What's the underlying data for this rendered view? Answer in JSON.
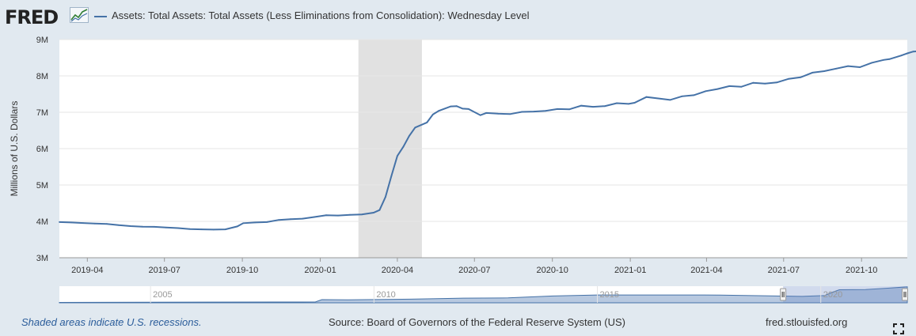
{
  "header": {
    "logo_text": "FRED",
    "series_label": "Assets: Total Assets: Total Assets (Less Eliminations from Consolidation): Wednesday Level"
  },
  "footer": {
    "recession_note": "Shaded areas indicate U.S. recessions.",
    "source": "Source: Board of Governors of the Federal Reserve System (US)",
    "site": "fred.stlouisfed.org"
  },
  "colors": {
    "line": "#4572a7",
    "recession": "#e1e1e1",
    "background": "#e1e9f0",
    "navigator_fill": "#7d9cc6"
  },
  "chart_data": {
    "type": "line",
    "ylabel": "Millions of U.S. Dollars",
    "x_ticks": [
      "2019-04",
      "2019-07",
      "2019-10",
      "2020-01",
      "2020-04",
      "2020-07",
      "2020-10",
      "2021-01",
      "2021-04",
      "2021-07",
      "2021-10"
    ],
    "y_ticks": [
      "3M",
      "4M",
      "5M",
      "6M",
      "7M",
      "8M",
      "9M"
    ],
    "ylim": [
      3000000,
      9000000
    ],
    "xlim": [
      "2019-02-27",
      "2021-11-24"
    ],
    "grid": true,
    "recession": [
      "2020-02-15",
      "2020-04-30"
    ],
    "navigator_labels": [
      "2005",
      "2010",
      "2015",
      "2020"
    ],
    "series": [
      {
        "name": "Assets: Total Assets: Total Assets (Less Eliminations from Consolidation): Wednesday Level",
        "points": [
          [
            "2019-02-27",
            3980000
          ],
          [
            "2019-03-13",
            3970000
          ],
          [
            "2019-03-27",
            3955000
          ],
          [
            "2019-04-10",
            3940000
          ],
          [
            "2019-04-24",
            3930000
          ],
          [
            "2019-05-08",
            3895000
          ],
          [
            "2019-05-22",
            3870000
          ],
          [
            "2019-06-05",
            3855000
          ],
          [
            "2019-06-19",
            3850000
          ],
          [
            "2019-07-03",
            3830000
          ],
          [
            "2019-07-17",
            3815000
          ],
          [
            "2019-07-31",
            3790000
          ],
          [
            "2019-08-14",
            3780000
          ],
          [
            "2019-08-28",
            3775000
          ],
          [
            "2019-09-11",
            3780000
          ],
          [
            "2019-09-25",
            3860000
          ],
          [
            "2019-10-02",
            3950000
          ],
          [
            "2019-10-16",
            3970000
          ],
          [
            "2019-10-30",
            3980000
          ],
          [
            "2019-11-13",
            4040000
          ],
          [
            "2019-11-27",
            4060000
          ],
          [
            "2019-12-11",
            4075000
          ],
          [
            "2019-12-25",
            4120000
          ],
          [
            "2020-01-08",
            4170000
          ],
          [
            "2020-01-22",
            4160000
          ],
          [
            "2020-02-05",
            4180000
          ],
          [
            "2020-02-19",
            4190000
          ],
          [
            "2020-03-04",
            4240000
          ],
          [
            "2020-03-11",
            4310000
          ],
          [
            "2020-03-18",
            4670000
          ],
          [
            "2020-03-25",
            5250000
          ],
          [
            "2020-04-01",
            5800000
          ],
          [
            "2020-04-08",
            6050000
          ],
          [
            "2020-04-15",
            6350000
          ],
          [
            "2020-04-22",
            6580000
          ],
          [
            "2020-05-06",
            6720000
          ],
          [
            "2020-05-13",
            6940000
          ],
          [
            "2020-05-20",
            7040000
          ],
          [
            "2020-06-03",
            7160000
          ],
          [
            "2020-06-10",
            7170000
          ],
          [
            "2020-06-17",
            7100000
          ],
          [
            "2020-06-24",
            7090000
          ],
          [
            "2020-07-08",
            6920000
          ],
          [
            "2020-07-15",
            6980000
          ],
          [
            "2020-07-29",
            6960000
          ],
          [
            "2020-08-12",
            6950000
          ],
          [
            "2020-08-26",
            7010000
          ],
          [
            "2020-09-09",
            7020000
          ],
          [
            "2020-09-23",
            7040000
          ],
          [
            "2020-10-07",
            7090000
          ],
          [
            "2020-10-21",
            7080000
          ],
          [
            "2020-11-04",
            7180000
          ],
          [
            "2020-11-18",
            7150000
          ],
          [
            "2020-12-02",
            7170000
          ],
          [
            "2020-12-16",
            7250000
          ],
          [
            "2020-12-30",
            7230000
          ],
          [
            "2021-01-06",
            7260000
          ],
          [
            "2021-01-20",
            7420000
          ],
          [
            "2021-02-03",
            7380000
          ],
          [
            "2021-02-17",
            7340000
          ],
          [
            "2021-03-03",
            7440000
          ],
          [
            "2021-03-17",
            7470000
          ],
          [
            "2021-03-31",
            7580000
          ],
          [
            "2021-04-14",
            7640000
          ],
          [
            "2021-04-28",
            7720000
          ],
          [
            "2021-05-12",
            7700000
          ],
          [
            "2021-05-26",
            7810000
          ],
          [
            "2021-06-09",
            7790000
          ],
          [
            "2021-06-23",
            7820000
          ],
          [
            "2021-07-07",
            7920000
          ],
          [
            "2021-07-21",
            7960000
          ],
          [
            "2021-08-04",
            8090000
          ],
          [
            "2021-08-18",
            8130000
          ],
          [
            "2021-09-01",
            8200000
          ],
          [
            "2021-09-15",
            8270000
          ],
          [
            "2021-09-29",
            8240000
          ],
          [
            "2021-10-13",
            8360000
          ],
          [
            "2021-10-27",
            8440000
          ],
          [
            "2021-11-03",
            8460000
          ],
          [
            "2021-11-17",
            8560000
          ],
          [
            "2021-11-24",
            8620000
          ],
          [
            "2021-12-01",
            8670000
          ],
          [
            "2021-12-08",
            8680000
          ]
        ]
      }
    ]
  }
}
